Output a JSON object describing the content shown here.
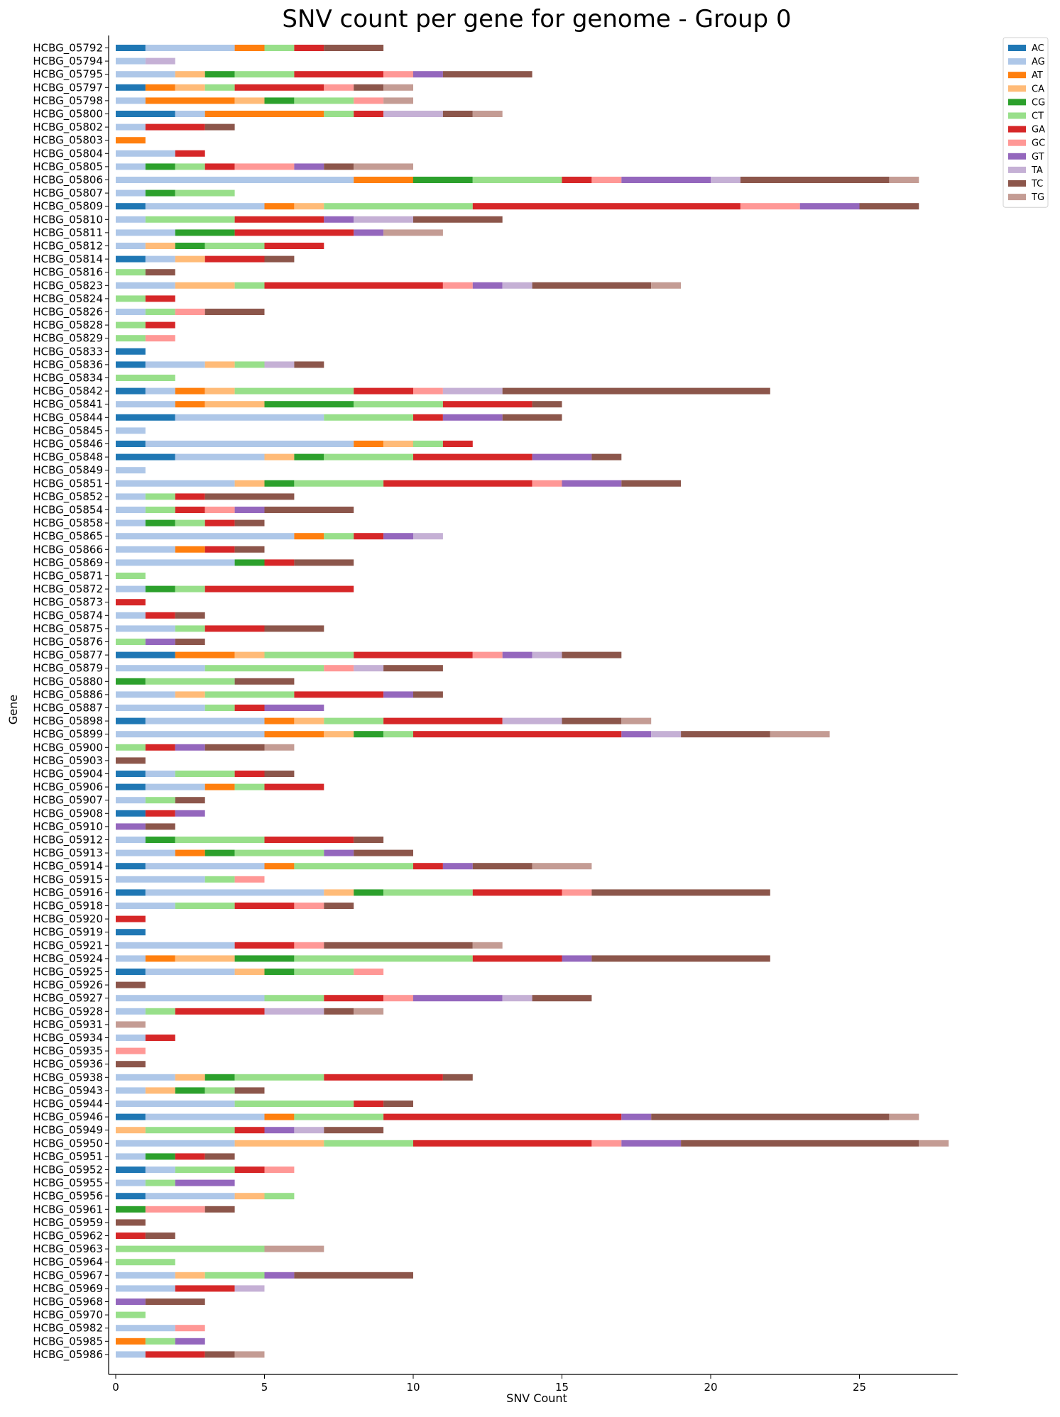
{
  "chart_data": {
    "type": "bar",
    "orientation": "horizontal",
    "stacked": true,
    "title": "SNV count per gene for genome - Group 0",
    "xlabel": "SNV Count",
    "ylabel": "Gene",
    "xlim": [
      0,
      28.3
    ],
    "xticks": [
      0,
      5,
      10,
      15,
      20,
      25
    ],
    "grid": false,
    "legend_position": "top-right outside",
    "series_names": [
      "AC",
      "AG",
      "AT",
      "CA",
      "CG",
      "CT",
      "GA",
      "GC",
      "GT",
      "TA",
      "TC",
      "TG"
    ],
    "colors": {
      "AC": "#1f77b4",
      "AG": "#aec7e8",
      "AT": "#ff7f0e",
      "CA": "#ffbb78",
      "CG": "#2ca02c",
      "CT": "#98df8a",
      "GA": "#d62728",
      "GC": "#ff9896",
      "GT": "#9467bd",
      "TA": "#c5b0d5",
      "TC": "#8c564b",
      "TG": "#c49c94"
    },
    "genes": [
      {
        "gene": "HCBG_05792",
        "counts": {
          "AC": 1,
          "AG": 3,
          "AT": 1,
          "CT": 1,
          "GA": 1,
          "TC": 2
        }
      },
      {
        "gene": "HCBG_05794",
        "counts": {
          "AG": 1,
          "TA": 1
        }
      },
      {
        "gene": "HCBG_05795",
        "counts": {
          "AG": 2,
          "CA": 1,
          "CG": 1,
          "CT": 2,
          "GA": 3,
          "GC": 1,
          "GT": 1,
          "TC": 3
        }
      },
      {
        "gene": "HCBG_05797",
        "counts": {
          "AC": 1,
          "AT": 1,
          "CA": 1,
          "CT": 1,
          "GA": 3,
          "GC": 1,
          "TC": 1,
          "TG": 1
        }
      },
      {
        "gene": "HCBG_05798",
        "counts": {
          "AG": 1,
          "AT": 3,
          "CA": 1,
          "CG": 1,
          "CT": 2,
          "GC": 1,
          "TG": 1
        }
      },
      {
        "gene": "HCBG_05800",
        "counts": {
          "AC": 2,
          "AG": 1,
          "AT": 4,
          "CT": 1,
          "GA": 1,
          "TA": 2,
          "TC": 1,
          "TG": 1
        }
      },
      {
        "gene": "HCBG_05802",
        "counts": {
          "AG": 1,
          "GA": 2,
          "TC": 1
        }
      },
      {
        "gene": "HCBG_05803",
        "counts": {
          "AT": 1
        }
      },
      {
        "gene": "HCBG_05804",
        "counts": {
          "AG": 2,
          "GA": 1
        }
      },
      {
        "gene": "HCBG_05805",
        "counts": {
          "AG": 1,
          "CG": 1,
          "CT": 1,
          "GA": 1,
          "GC": 2,
          "GT": 1,
          "TC": 1,
          "TG": 2
        }
      },
      {
        "gene": "HCBG_05806",
        "counts": {
          "AG": 8,
          "AT": 2,
          "CG": 2,
          "CT": 3,
          "GA": 1,
          "GC": 1,
          "GT": 3,
          "TA": 1,
          "TC": 5,
          "TG": 1
        }
      },
      {
        "gene": "HCBG_05807",
        "counts": {
          "AG": 1,
          "CG": 1,
          "CT": 2
        }
      },
      {
        "gene": "HCBG_05809",
        "counts": {
          "AC": 1,
          "AG": 4,
          "AT": 1,
          "CA": 1,
          "CT": 5,
          "GA": 9,
          "GC": 2,
          "GT": 2,
          "TC": 2
        }
      },
      {
        "gene": "HCBG_05810",
        "counts": {
          "AG": 1,
          "CT": 3,
          "GA": 3,
          "GT": 1,
          "TA": 2,
          "TC": 3
        }
      },
      {
        "gene": "HCBG_05811",
        "counts": {
          "AG": 2,
          "CG": 2,
          "GA": 4,
          "GT": 1,
          "TG": 2
        }
      },
      {
        "gene": "HCBG_05812",
        "counts": {
          "AG": 1,
          "CA": 1,
          "CG": 1,
          "CT": 2,
          "GA": 2
        }
      },
      {
        "gene": "HCBG_05814",
        "counts": {
          "AC": 1,
          "AG": 1,
          "CA": 1,
          "GA": 2,
          "TC": 1
        }
      },
      {
        "gene": "HCBG_05816",
        "counts": {
          "CT": 1,
          "TC": 1
        }
      },
      {
        "gene": "HCBG_05823",
        "counts": {
          "AG": 2,
          "CA": 2,
          "CT": 1,
          "GA": 6,
          "GC": 1,
          "GT": 1,
          "TA": 1,
          "TC": 4,
          "TG": 1
        }
      },
      {
        "gene": "HCBG_05824",
        "counts": {
          "CT": 1,
          "GA": 1
        }
      },
      {
        "gene": "HCBG_05826",
        "counts": {
          "AG": 1,
          "CT": 1,
          "GC": 1,
          "TC": 2
        }
      },
      {
        "gene": "HCBG_05828",
        "counts": {
          "CT": 1,
          "GA": 1
        }
      },
      {
        "gene": "HCBG_05829",
        "counts": {
          "CT": 1,
          "GC": 1
        }
      },
      {
        "gene": "HCBG_05833",
        "counts": {
          "AC": 1
        }
      },
      {
        "gene": "HCBG_05836",
        "counts": {
          "AC": 1,
          "AG": 2,
          "CA": 1,
          "CT": 1,
          "TA": 1,
          "TC": 1
        }
      },
      {
        "gene": "HCBG_05834",
        "counts": {
          "CT": 2
        }
      },
      {
        "gene": "HCBG_05842",
        "counts": {
          "AC": 1,
          "AG": 1,
          "AT": 1,
          "CA": 1,
          "CT": 4,
          "GA": 2,
          "GC": 1,
          "TA": 2,
          "TC": 9
        }
      },
      {
        "gene": "HCBG_05841",
        "counts": {
          "AG": 2,
          "AT": 1,
          "CA": 2,
          "CG": 3,
          "CT": 3,
          "GA": 3,
          "TC": 1
        }
      },
      {
        "gene": "HCBG_05844",
        "counts": {
          "AC": 2,
          "AG": 5,
          "CT": 3,
          "GA": 1,
          "GT": 2,
          "TC": 2
        }
      },
      {
        "gene": "HCBG_05845",
        "counts": {
          "AG": 1
        }
      },
      {
        "gene": "HCBG_05846",
        "counts": {
          "AC": 1,
          "AG": 7,
          "AT": 1,
          "CA": 1,
          "CT": 1,
          "GA": 1
        }
      },
      {
        "gene": "HCBG_05848",
        "counts": {
          "AC": 2,
          "AG": 3,
          "CA": 1,
          "CG": 1,
          "CT": 3,
          "GA": 4,
          "GT": 2,
          "TC": 1
        }
      },
      {
        "gene": "HCBG_05849",
        "counts": {
          "AG": 1
        }
      },
      {
        "gene": "HCBG_05851",
        "counts": {
          "AG": 4,
          "CA": 1,
          "CG": 1,
          "CT": 3,
          "GA": 5,
          "GC": 1,
          "GT": 2,
          "TC": 2
        }
      },
      {
        "gene": "HCBG_05852",
        "counts": {
          "AG": 1,
          "CT": 1,
          "GA": 1,
          "TC": 3
        }
      },
      {
        "gene": "HCBG_05854",
        "counts": {
          "AG": 1,
          "CT": 1,
          "GA": 1,
          "GC": 1,
          "GT": 1,
          "TC": 3
        }
      },
      {
        "gene": "HCBG_05858",
        "counts": {
          "AG": 1,
          "CG": 1,
          "CT": 1,
          "GA": 1,
          "TC": 1
        }
      },
      {
        "gene": "HCBG_05865",
        "counts": {
          "AG": 6,
          "AT": 1,
          "CT": 1,
          "GA": 1,
          "GT": 1,
          "TA": 1
        }
      },
      {
        "gene": "HCBG_05866",
        "counts": {
          "AG": 2,
          "AT": 1,
          "GA": 1,
          "TC": 1
        }
      },
      {
        "gene": "HCBG_05869",
        "counts": {
          "AG": 4,
          "CG": 1,
          "GA": 1,
          "TC": 2
        }
      },
      {
        "gene": "HCBG_05871",
        "counts": {
          "CT": 1
        }
      },
      {
        "gene": "HCBG_05872",
        "counts": {
          "AG": 1,
          "CG": 1,
          "CT": 1,
          "GA": 5
        }
      },
      {
        "gene": "HCBG_05873",
        "counts": {
          "GA": 1
        }
      },
      {
        "gene": "HCBG_05874",
        "counts": {
          "AG": 1,
          "GA": 1,
          "TC": 1
        }
      },
      {
        "gene": "HCBG_05875",
        "counts": {
          "AG": 2,
          "CT": 1,
          "GA": 2,
          "TC": 2
        }
      },
      {
        "gene": "HCBG_05876",
        "counts": {
          "CT": 1,
          "GT": 1,
          "TC": 1
        }
      },
      {
        "gene": "HCBG_05877",
        "counts": {
          "AC": 2,
          "AT": 2,
          "CA": 1,
          "CT": 3,
          "GA": 4,
          "GC": 1,
          "GT": 1,
          "TA": 1,
          "TC": 2
        }
      },
      {
        "gene": "HCBG_05879",
        "counts": {
          "AG": 3,
          "CT": 4,
          "GC": 1,
          "TA": 1,
          "TC": 2
        }
      },
      {
        "gene": "HCBG_05880",
        "counts": {
          "CG": 1,
          "CT": 3,
          "TC": 2
        }
      },
      {
        "gene": "HCBG_05886",
        "counts": {
          "AG": 2,
          "CA": 1,
          "CT": 3,
          "GA": 3,
          "GT": 1,
          "TC": 1
        }
      },
      {
        "gene": "HCBG_05887",
        "counts": {
          "AG": 3,
          "CT": 1,
          "GA": 1,
          "GT": 2
        }
      },
      {
        "gene": "HCBG_05898",
        "counts": {
          "AC": 1,
          "AG": 4,
          "AT": 1,
          "CA": 1,
          "CT": 2,
          "GA": 4,
          "TA": 2,
          "TC": 2,
          "TG": 1
        }
      },
      {
        "gene": "HCBG_05899",
        "counts": {
          "AG": 5,
          "AT": 2,
          "CA": 1,
          "CG": 1,
          "CT": 1,
          "GA": 7,
          "GT": 1,
          "TA": 1,
          "TC": 3,
          "TG": 2
        }
      },
      {
        "gene": "HCBG_05900",
        "counts": {
          "CT": 1,
          "GA": 1,
          "GT": 1,
          "TC": 2,
          "TG": 1
        }
      },
      {
        "gene": "HCBG_05903",
        "counts": {
          "TC": 1
        }
      },
      {
        "gene": "HCBG_05904",
        "counts": {
          "AC": 1,
          "AG": 1,
          "CT": 2,
          "GA": 1,
          "TC": 1
        }
      },
      {
        "gene": "HCBG_05906",
        "counts": {
          "AC": 1,
          "AG": 2,
          "AT": 1,
          "CT": 1,
          "GA": 2
        }
      },
      {
        "gene": "HCBG_05907",
        "counts": {
          "AG": 1,
          "CT": 1,
          "TC": 1
        }
      },
      {
        "gene": "HCBG_05908",
        "counts": {
          "AC": 1,
          "GA": 1,
          "GT": 1
        }
      },
      {
        "gene": "HCBG_05910",
        "counts": {
          "GT": 1,
          "TC": 1
        }
      },
      {
        "gene": "HCBG_05912",
        "counts": {
          "AG": 1,
          "CG": 1,
          "CT": 3,
          "GA": 3,
          "TC": 1
        }
      },
      {
        "gene": "HCBG_05913",
        "counts": {
          "AG": 2,
          "AT": 1,
          "CG": 1,
          "CT": 3,
          "GT": 1,
          "TC": 2
        }
      },
      {
        "gene": "HCBG_05914",
        "counts": {
          "AC": 1,
          "AG": 4,
          "AT": 1,
          "CT": 4,
          "GA": 1,
          "GT": 1,
          "TC": 2,
          "TG": 2
        }
      },
      {
        "gene": "HCBG_05915",
        "counts": {
          "AG": 3,
          "CT": 1,
          "GC": 1
        }
      },
      {
        "gene": "HCBG_05916",
        "counts": {
          "AC": 1,
          "AG": 6,
          "CA": 1,
          "CG": 1,
          "CT": 3,
          "GA": 3,
          "GC": 1,
          "TC": 6
        }
      },
      {
        "gene": "HCBG_05918",
        "counts": {
          "AG": 2,
          "CT": 2,
          "GA": 2,
          "GC": 1,
          "TC": 1
        }
      },
      {
        "gene": "HCBG_05920",
        "counts": {
          "GA": 1
        }
      },
      {
        "gene": "HCBG_05919",
        "counts": {
          "AC": 1
        }
      },
      {
        "gene": "HCBG_05921",
        "counts": {
          "AG": 4,
          "GA": 2,
          "GC": 1,
          "TC": 5,
          "TG": 1
        }
      },
      {
        "gene": "HCBG_05924",
        "counts": {
          "AG": 1,
          "AT": 1,
          "CA": 2,
          "CG": 2,
          "CT": 6,
          "GA": 3,
          "GT": 1,
          "TC": 6
        }
      },
      {
        "gene": "HCBG_05925",
        "counts": {
          "AC": 1,
          "AG": 3,
          "CA": 1,
          "CG": 1,
          "CT": 2,
          "GC": 1
        }
      },
      {
        "gene": "HCBG_05926",
        "counts": {
          "TC": 1
        }
      },
      {
        "gene": "HCBG_05927",
        "counts": {
          "AG": 5,
          "CT": 2,
          "GA": 2,
          "GC": 1,
          "GT": 3,
          "TA": 1,
          "TC": 2
        }
      },
      {
        "gene": "HCBG_05928",
        "counts": {
          "AG": 1,
          "CT": 1,
          "GA": 3,
          "TA": 2,
          "TC": 1,
          "TG": 1
        }
      },
      {
        "gene": "HCBG_05931",
        "counts": {
          "TG": 1
        }
      },
      {
        "gene": "HCBG_05934",
        "counts": {
          "AG": 1,
          "GA": 1
        }
      },
      {
        "gene": "HCBG_05935",
        "counts": {
          "GC": 1
        }
      },
      {
        "gene": "HCBG_05936",
        "counts": {
          "TC": 1
        }
      },
      {
        "gene": "HCBG_05938",
        "counts": {
          "AG": 2,
          "CA": 1,
          "CG": 1,
          "CT": 3,
          "GA": 4,
          "TC": 1
        }
      },
      {
        "gene": "HCBG_05943",
        "counts": {
          "AG": 1,
          "CA": 1,
          "CG": 1,
          "CT": 1,
          "TC": 1
        }
      },
      {
        "gene": "HCBG_05944",
        "counts": {
          "AG": 4,
          "CT": 4,
          "GA": 1,
          "TC": 1
        }
      },
      {
        "gene": "HCBG_05946",
        "counts": {
          "AC": 1,
          "AG": 4,
          "AT": 1,
          "CT": 3,
          "GA": 8,
          "GT": 1,
          "TC": 8,
          "TG": 1
        }
      },
      {
        "gene": "HCBG_05949",
        "counts": {
          "CA": 1,
          "CT": 3,
          "GA": 1,
          "GT": 1,
          "TA": 1,
          "TC": 2
        }
      },
      {
        "gene": "HCBG_05950",
        "counts": {
          "AG": 4,
          "CA": 3,
          "CT": 3,
          "GA": 6,
          "GC": 1,
          "GT": 2,
          "TC": 8,
          "TG": 1
        }
      },
      {
        "gene": "HCBG_05951",
        "counts": {
          "AG": 1,
          "CG": 1,
          "GA": 1,
          "TC": 1
        }
      },
      {
        "gene": "HCBG_05952",
        "counts": {
          "AC": 1,
          "AG": 1,
          "CT": 2,
          "GA": 1,
          "GC": 1
        }
      },
      {
        "gene": "HCBG_05955",
        "counts": {
          "AG": 1,
          "CT": 1,
          "GT": 2
        }
      },
      {
        "gene": "HCBG_05956",
        "counts": {
          "AC": 1,
          "AG": 3,
          "CA": 1,
          "CT": 1
        }
      },
      {
        "gene": "HCBG_05961",
        "counts": {
          "CG": 1,
          "GC": 2,
          "TC": 1
        }
      },
      {
        "gene": "HCBG_05959",
        "counts": {
          "TC": 1
        }
      },
      {
        "gene": "HCBG_05962",
        "counts": {
          "GA": 1,
          "TC": 1
        }
      },
      {
        "gene": "HCBG_05963",
        "counts": {
          "CT": 5,
          "TG": 2
        }
      },
      {
        "gene": "HCBG_05964",
        "counts": {
          "CT": 2
        }
      },
      {
        "gene": "HCBG_05967",
        "counts": {
          "AG": 2,
          "CA": 1,
          "CT": 2,
          "GT": 1,
          "TC": 4
        }
      },
      {
        "gene": "HCBG_05969",
        "counts": {
          "AG": 2,
          "GA": 2,
          "TA": 1
        }
      },
      {
        "gene": "HCBG_05968",
        "counts": {
          "GT": 1,
          "TC": 2
        }
      },
      {
        "gene": "HCBG_05970",
        "counts": {
          "CT": 1
        }
      },
      {
        "gene": "HCBG_05982",
        "counts": {
          "AG": 2,
          "GC": 1
        }
      },
      {
        "gene": "HCBG_05985",
        "counts": {
          "AT": 1,
          "CT": 1,
          "GT": 1
        }
      },
      {
        "gene": "HCBG_05986",
        "counts": {
          "AG": 1,
          "GA": 2,
          "TC": 1,
          "TG": 1
        }
      }
    ]
  }
}
